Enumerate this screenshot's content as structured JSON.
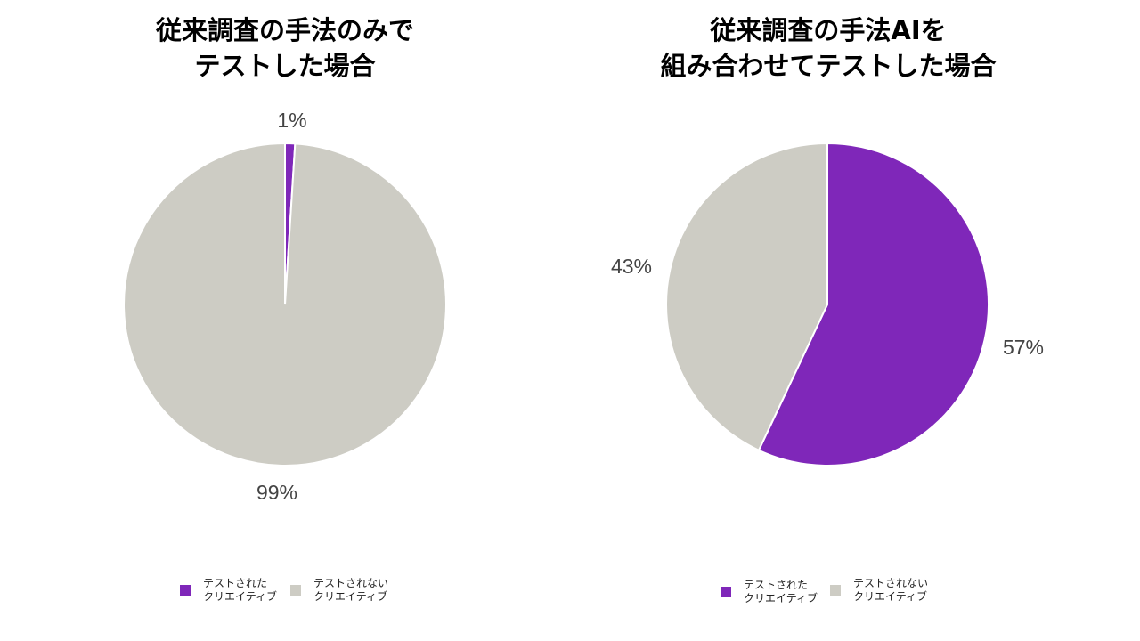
{
  "colors": {
    "tested": "#7f27b9",
    "untested": "#cdccc4"
  },
  "chart_data": [
    {
      "type": "pie",
      "title": [
        "従来調査の手法のみで",
        "テストした場合"
      ],
      "slices": [
        {
          "name": "テストされたクリエイティブ",
          "value": 1,
          "label": "1%"
        },
        {
          "name": "テストされないクリエイティブ",
          "value": 99,
          "label": "99%"
        }
      ],
      "legend": [
        {
          "lines": [
            "テストされた",
            "クリエイティブ"
          ]
        },
        {
          "lines": [
            "テストされない",
            "クリエイティブ"
          ]
        }
      ],
      "legend_position": "bottom"
    },
    {
      "type": "pie",
      "title": [
        "従来調査の手法AIを",
        "組み合わせてテストした場合"
      ],
      "slices": [
        {
          "name": "テストされたクリエイティブ",
          "value": 57,
          "label": "57%"
        },
        {
          "name": "テストされないクリエイティブ",
          "value": 43,
          "label": "43%"
        }
      ],
      "legend": [
        {
          "lines": [
            "テストされた",
            "クリエイティブ"
          ]
        },
        {
          "lines": [
            "テストされない",
            "クリエイティブ"
          ]
        }
      ],
      "legend_position": "bottom"
    }
  ]
}
